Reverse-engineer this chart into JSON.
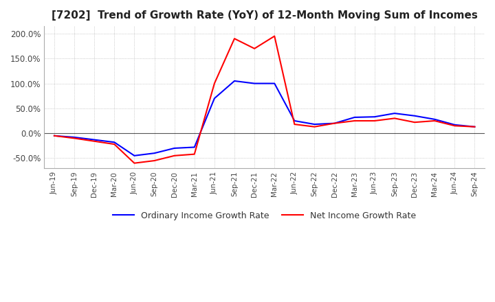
{
  "title": "[7202]  Trend of Growth Rate (YoY) of 12-Month Moving Sum of Incomes",
  "title_fontsize": 11,
  "background_color": "#ffffff",
  "grid_color": "#aaaaaa",
  "x_labels": [
    "Jun-19",
    "Sep-19",
    "Dec-19",
    "Mar-20",
    "Jun-20",
    "Sep-20",
    "Dec-20",
    "Mar-21",
    "Jun-21",
    "Sep-21",
    "Dec-21",
    "Mar-22",
    "Jun-22",
    "Sep-22",
    "Dec-22",
    "Mar-23",
    "Jun-23",
    "Sep-23",
    "Dec-23",
    "Mar-24",
    "Jun-24",
    "Sep-24"
  ],
  "ordinary_income": [
    -5,
    -8,
    -13,
    -18,
    -45,
    -40,
    -30,
    -28,
    70,
    105,
    100,
    100,
    25,
    18,
    20,
    32,
    33,
    40,
    35,
    28,
    17,
    13
  ],
  "net_income": [
    -5,
    -10,
    -16,
    -22,
    -60,
    -55,
    -45,
    -42,
    100,
    190,
    170,
    195,
    18,
    13,
    20,
    25,
    25,
    30,
    22,
    25,
    15,
    13
  ],
  "ordinary_color": "#0000ff",
  "net_color": "#ff0000",
  "ylim": [
    -70,
    215
  ],
  "yticks": [
    -50,
    0,
    50,
    100,
    150,
    200
  ],
  "legend_labels": [
    "Ordinary Income Growth Rate",
    "Net Income Growth Rate"
  ],
  "line_width": 1.5
}
